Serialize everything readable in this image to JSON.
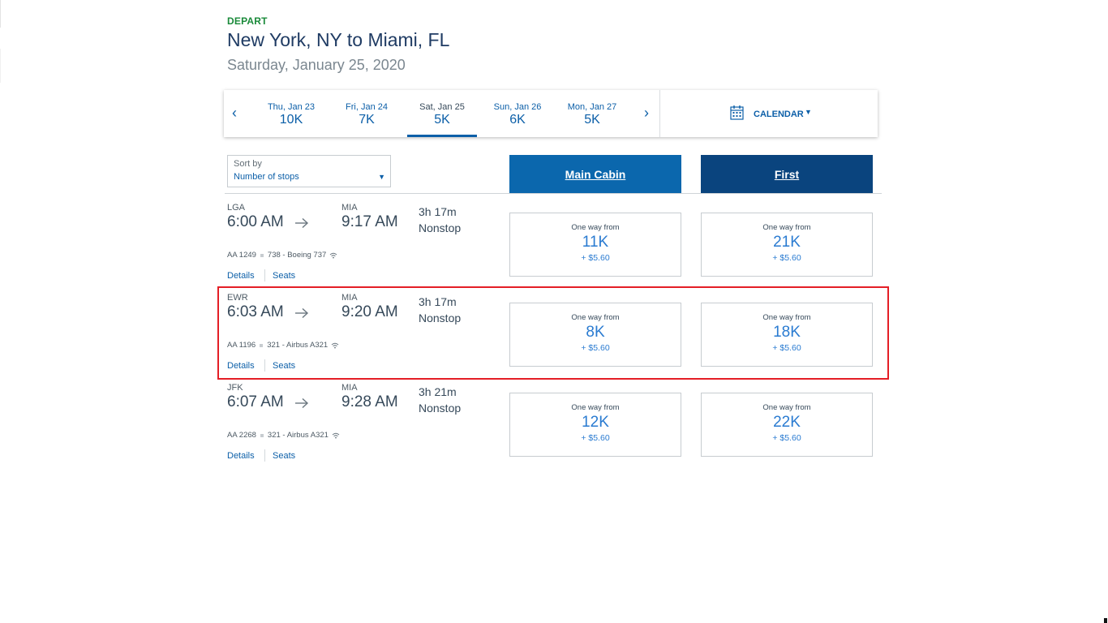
{
  "header": {
    "depart_label": "DEPART",
    "route": "New York, NY to Miami, FL",
    "date": "Saturday, January 25, 2020"
  },
  "date_strip": {
    "prev_icon": "chevron-left-icon",
    "next_icon": "chevron-right-icon",
    "dates": [
      {
        "label": "Thu, Jan 23",
        "price": "10K",
        "active": false
      },
      {
        "label": "Fri, Jan 24",
        "price": "7K",
        "active": false
      },
      {
        "label": "Sat, Jan 25",
        "price": "5K",
        "active": true
      },
      {
        "label": "Sun, Jan 26",
        "price": "6K",
        "active": false
      },
      {
        "label": "Mon, Jan 27",
        "price": "5K",
        "active": false
      }
    ],
    "calendar_label": "CALENDAR"
  },
  "sort": {
    "caption": "Sort by",
    "value": "Number of stops"
  },
  "cabins": {
    "main": "Main Cabin",
    "first": "First"
  },
  "flights": [
    {
      "dep_airport": "LGA",
      "dep_time": "6:00 AM",
      "arr_airport": "MIA",
      "arr_time": "9:17 AM",
      "duration": "3h 17m",
      "stops": "Nonstop",
      "flight_number": "AA 1249",
      "aircraft": "738 - Boeing 737",
      "details_label": "Details",
      "seats_label": "Seats",
      "main": {
        "caption": "One way from",
        "miles": "11K",
        "tax": "+ $5.60"
      },
      "first": {
        "caption": "One way from",
        "miles": "21K",
        "tax": "+ $5.60"
      }
    },
    {
      "dep_airport": "EWR",
      "dep_time": "6:03 AM",
      "arr_airport": "MIA",
      "arr_time": "9:20 AM",
      "duration": "3h 17m",
      "stops": "Nonstop",
      "flight_number": "AA 1196",
      "aircraft": "321 - Airbus A321",
      "details_label": "Details",
      "seats_label": "Seats",
      "main": {
        "caption": "One way from",
        "miles": "8K",
        "tax": "+ $5.60"
      },
      "first": {
        "caption": "One way from",
        "miles": "18K",
        "tax": "+ $5.60"
      }
    },
    {
      "dep_airport": "JFK",
      "dep_time": "6:07 AM",
      "arr_airport": "MIA",
      "arr_time": "9:28 AM",
      "duration": "3h 21m",
      "stops": "Nonstop",
      "flight_number": "AA 2268",
      "aircraft": "321 - Airbus A321",
      "details_label": "Details",
      "seats_label": "Seats",
      "main": {
        "caption": "One way from",
        "miles": "12K",
        "tax": "+ $5.60"
      },
      "first": {
        "caption": "One way from",
        "miles": "22K",
        "tax": "+ $5.60"
      }
    }
  ],
  "colors": {
    "brand_blue": "#0c5fa8",
    "main_cabin": "#0b67ad",
    "first_cabin": "#0a447e",
    "depart_green": "#1a8a3a",
    "highlight": "#e41e26"
  }
}
